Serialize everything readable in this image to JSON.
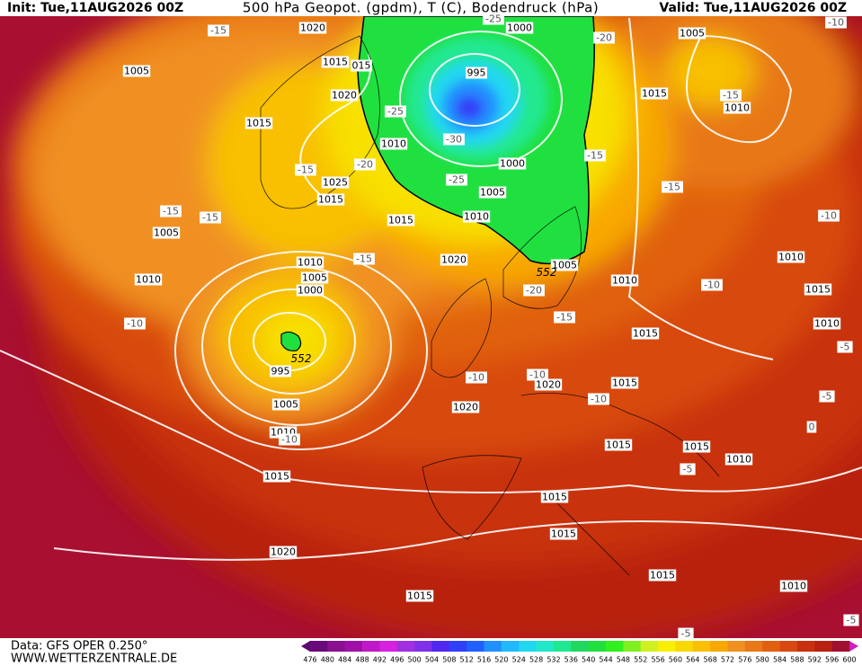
{
  "header": {
    "init": "Init: Tue,11AUG2026 00Z",
    "title": "500 hPa Geopot. (gpdm), T (C), Bodendruck (hPa)",
    "valid": "Valid: Tue,11AUG2026 00Z"
  },
  "footer": {
    "data": "Data: GFS OPER 0.250°",
    "site": "WWW.WETTERZENTRALE.DE"
  },
  "colorbar": {
    "labels": [
      476,
      480,
      484,
      488,
      492,
      496,
      500,
      504,
      508,
      512,
      516,
      520,
      524,
      528,
      532,
      536,
      540,
      544,
      548,
      552,
      556,
      560,
      564,
      568,
      572,
      576,
      580,
      584,
      588,
      592,
      596,
      600
    ],
    "colors": [
      "#6a0a7a",
      "#8a1090",
      "#a010a8",
      "#c018c8",
      "#d820e0",
      "#a030e0",
      "#8030e8",
      "#5028f0",
      "#3040f8",
      "#2060ff",
      "#2090ff",
      "#20b8ff",
      "#20d8f0",
      "#20e8c8",
      "#20e890",
      "#20d860",
      "#20e040",
      "#30f020",
      "#80f020",
      "#d0f020",
      "#f8f000",
      "#f8d800",
      "#f8c000",
      "#f8a800",
      "#f09020",
      "#e87818",
      "#e06010",
      "#d84810",
      "#c83010",
      "#b82010",
      "#a01030"
    ]
  },
  "map": {
    "isobar_labels": [
      "1020",
      "1000",
      "1005",
      "1015",
      "015",
      "1005",
      "995",
      "1020",
      "1015",
      "1010",
      "1015",
      "1010",
      "1000",
      "1025",
      "1005",
      "1015",
      "1015",
      "1010",
      "1005",
      "1020",
      "1010",
      "1010",
      "1005",
      "1005",
      "1010",
      "1010",
      "1015",
      "1000",
      "1010",
      "1015",
      "995",
      "1020",
      "1015",
      "1020",
      "1005",
      "1010",
      "1015",
      "1015",
      "1010",
      "1015",
      "1015",
      "1015",
      "1020",
      "1015",
      "1010",
      "1015"
    ],
    "temperature_labels": [
      "-15",
      "-20",
      "-10",
      "-25",
      "-15",
      "-30",
      "-15",
      "-20",
      "-15",
      "-25",
      "-15",
      "-15",
      "-15",
      "-10",
      "-15",
      "-20",
      "-10",
      "-15",
      "-10",
      "-10",
      "-10",
      "-5",
      "-10",
      "-5",
      "-10",
      "0",
      "-5",
      "-5",
      "-5",
      "-25"
    ],
    "height_labels": [
      "552",
      "552"
    ]
  }
}
